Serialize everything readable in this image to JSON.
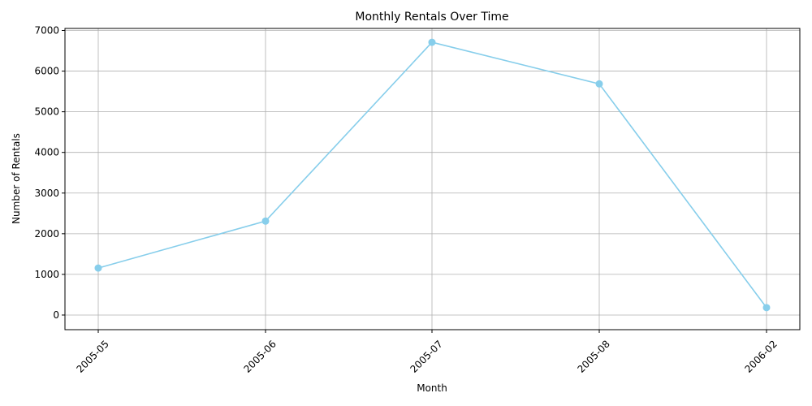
{
  "chart_data": {
    "type": "line",
    "title": "Monthly Rentals Over Time",
    "xlabel": "Month",
    "ylabel": "Number of Rentals",
    "categories": [
      "2005-05",
      "2005-06",
      "2005-07",
      "2005-08",
      "2006-02"
    ],
    "series": [
      {
        "values": [
          1156,
          2311,
          6709,
          5686,
          182
        ]
      }
    ],
    "yticks": [
      0,
      1000,
      2000,
      3000,
      4000,
      5000,
      6000,
      7000
    ],
    "ylim": [
      -360,
      7050
    ],
    "grid": true,
    "line_color": "#87ceeb",
    "marker": "circle"
  }
}
